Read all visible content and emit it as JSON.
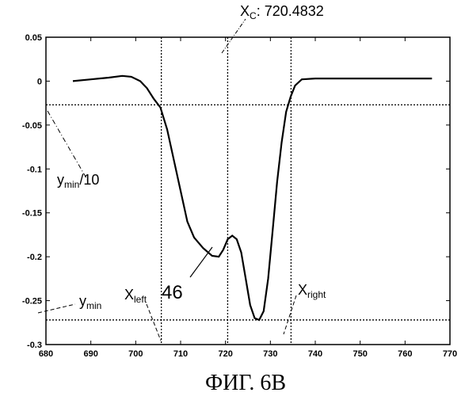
{
  "chart_data": {
    "type": "line",
    "title": "",
    "xlabel": "",
    "ylabel": "",
    "xlim": [
      680,
      770
    ],
    "ylim": [
      -0.3,
      0.05
    ],
    "x_ticks": [
      680,
      690,
      700,
      710,
      720,
      730,
      740,
      750,
      760,
      770
    ],
    "y_ticks": [
      {
        "value": 0.05,
        "label": "0.05"
      },
      {
        "value": 0,
        "label": "0"
      },
      {
        "value": -0.05,
        "label": "-0.05"
      },
      {
        "value": -0.1,
        "label": "-0.1"
      },
      {
        "value": -0.15,
        "label": "-0.15"
      },
      {
        "value": -0.2,
        "label": "-0.2"
      },
      {
        "value": -0.25,
        "label": "-0.25"
      },
      {
        "value": -0.3,
        "label": "-0.3"
      }
    ],
    "grid": false,
    "series": [
      {
        "points": [
          [
            686,
            0
          ],
          [
            690,
            0.002
          ],
          [
            694,
            0.004
          ],
          [
            697,
            0.006
          ],
          [
            699,
            0.005
          ],
          [
            701,
            0.0
          ],
          [
            702.5,
            -0.008
          ],
          [
            704,
            -0.02
          ],
          [
            705.5,
            -0.03
          ],
          [
            707,
            -0.055
          ],
          [
            708.5,
            -0.09
          ],
          [
            710,
            -0.125
          ],
          [
            711.5,
            -0.16
          ],
          [
            713,
            -0.178
          ],
          [
            715,
            -0.19
          ],
          [
            717,
            -0.199
          ],
          [
            718.5,
            -0.2
          ],
          [
            719.5,
            -0.192
          ],
          [
            720.5,
            -0.18
          ],
          [
            721.5,
            -0.176
          ],
          [
            722.5,
            -0.18
          ],
          [
            723.5,
            -0.195
          ],
          [
            724.5,
            -0.225
          ],
          [
            725.5,
            -0.255
          ],
          [
            726.5,
            -0.27
          ],
          [
            727.5,
            -0.272
          ],
          [
            728.5,
            -0.262
          ],
          [
            729.5,
            -0.225
          ],
          [
            730.5,
            -0.17
          ],
          [
            731.5,
            -0.115
          ],
          [
            732.5,
            -0.07
          ],
          [
            733.5,
            -0.035
          ],
          [
            734.5,
            -0.018
          ],
          [
            735.5,
            -0.005
          ],
          [
            737,
            0.002
          ],
          [
            740,
            0.003
          ],
          [
            750,
            0.003
          ],
          [
            760,
            0.003
          ],
          [
            766,
            0.003
          ]
        ]
      }
    ],
    "reference_lines": {
      "y_min_over_10": -0.027,
      "y_min": -0.272,
      "x_left": 705.7,
      "x_center": 720.4832,
      "x_right": 734.6
    },
    "annotations": {
      "xc_prefix": "X",
      "xc_sub": "C",
      "xc_value": ": 720.4832",
      "ymin10_main": "y",
      "ymin10_sub": "min",
      "ymin10_tail": "/10",
      "ymin_main": "y",
      "ymin_sub": "min",
      "xleft_main": "X",
      "xleft_sub": "left",
      "label_46": "46",
      "xright_main": "X",
      "xright_sub": "right"
    },
    "caption": "ФИГ. 6В"
  }
}
